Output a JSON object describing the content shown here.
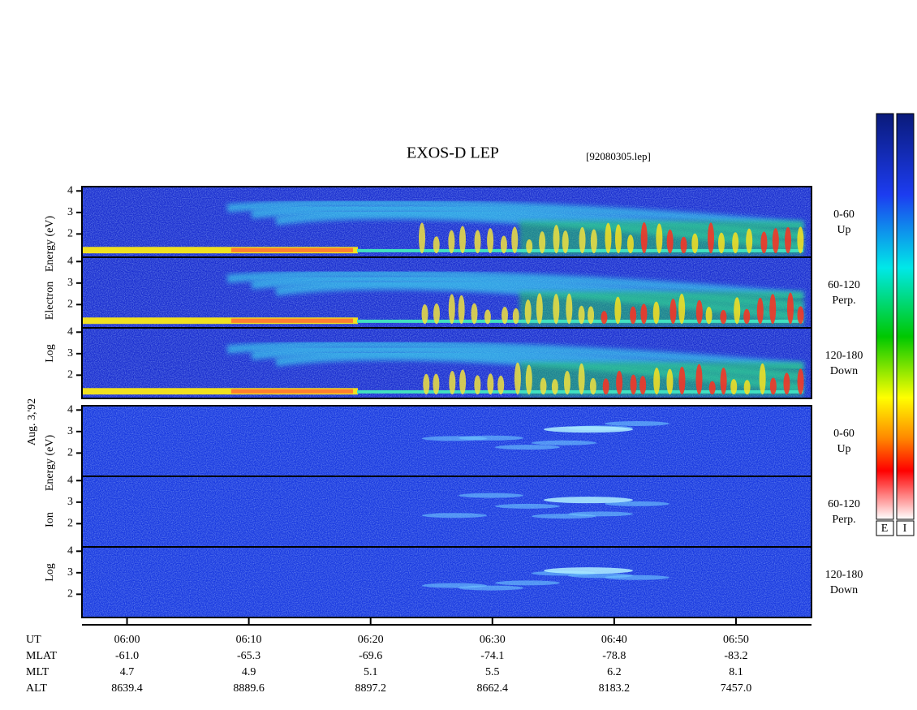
{
  "title": "EXOS-D LEP",
  "file": "[92080305.lep]",
  "chart_data": {
    "type": "spectrogram",
    "x_label": "UT",
    "xlim": [
      356.3,
      416.2
    ],
    "xticks": [
      {
        "value": 360,
        "label": "06:00"
      },
      {
        "value": 370,
        "label": "06:10"
      },
      {
        "value": 380,
        "label": "06:20"
      },
      {
        "value": 390,
        "label": "06:30"
      },
      {
        "value": 400,
        "label": "06:40"
      },
      {
        "value": 410,
        "label": "06:50"
      }
    ],
    "date": "Aug. 3,'92",
    "groups": [
      {
        "species": "electron",
        "label": [
          "Log",
          "Electron",
          "Energy (eV)"
        ],
        "panels": [
          {
            "angle": "0-60",
            "direction": "Up",
            "ylim": [
              0.92,
              4.2
            ],
            "yticks": [
              2,
              3,
              4
            ]
          },
          {
            "angle": "60-120",
            "direction": "Perp.",
            "ylim": [
              0.92,
              4.2
            ],
            "yticks": [
              2,
              3,
              4
            ]
          },
          {
            "angle": "120-180",
            "direction": "Down",
            "ylim": [
              0.92,
              4.2
            ],
            "yticks": [
              2,
              3,
              4
            ]
          }
        ]
      },
      {
        "species": "ion",
        "label": [
          "Log",
          "Ion",
          "Energy (eV)"
        ],
        "panels": [
          {
            "angle": "0-60",
            "direction": "Up",
            "ylim": [
              0.92,
              4.2
            ],
            "yticks": [
              2,
              3,
              4
            ]
          },
          {
            "angle": "60-120",
            "direction": "Perp.",
            "ylim": [
              0.92,
              4.2
            ],
            "yticks": [
              2,
              3,
              4
            ]
          },
          {
            "angle": "120-180",
            "direction": "Down",
            "ylim": [
              0.92,
              4.2
            ],
            "yticks": [
              2,
              3,
              4
            ]
          }
        ]
      }
    ],
    "orbit": [
      {
        "name": "MLAT",
        "values": [
          -61,
          -65.3,
          -69.6,
          -74.1,
          -78.8,
          -83.2
        ],
        "value_labels": [
          "-61.0",
          "-65.3",
          "-69.6",
          "-74.1",
          "-78.8",
          "-83.2"
        ]
      },
      {
        "name": "MLT",
        "values": [
          4.7,
          4.9,
          5.1,
          5.5,
          6.2,
          8.1
        ]
      },
      {
        "name": "ALT",
        "values": [
          8639.4,
          8889.6,
          8897.2,
          8662.4,
          8183.2,
          7457
        ],
        "value_labels": [
          "8639.4",
          "8889.6",
          "8897.2",
          "8662.4",
          "8183.2",
          "7457.0"
        ]
      }
    ],
    "colorbars": [
      "E",
      "I"
    ]
  }
}
